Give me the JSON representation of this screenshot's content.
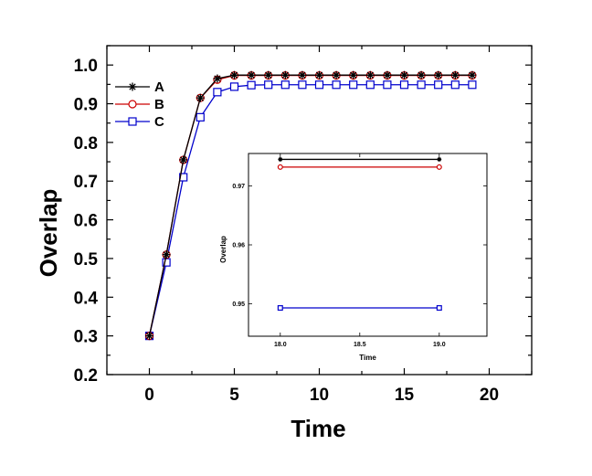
{
  "chart_data": [
    {
      "type": "line",
      "xlabel": "Time",
      "ylabel": "Overlap",
      "xlim": [
        -2.5,
        22.5
      ],
      "ylim": [
        0.2,
        1.05
      ],
      "xticks": [
        0,
        5,
        10,
        15,
        20
      ],
      "yticks": [
        0.2,
        0.3,
        0.4,
        0.5,
        0.6,
        0.7,
        0.8,
        0.9,
        1.0
      ],
      "xtick_labels": [
        "0",
        "5",
        "10",
        "15",
        "20"
      ],
      "ytick_labels": [
        "0.2",
        "0.3",
        "0.4",
        "0.5",
        "0.6",
        "0.7",
        "0.8",
        "0.9",
        "1.0"
      ],
      "legend_position": "top-left",
      "grid": false,
      "x": [
        0,
        1,
        2,
        3,
        4,
        5,
        6,
        7,
        8,
        9,
        10,
        11,
        12,
        13,
        14,
        15,
        16,
        17,
        18,
        19
      ],
      "series": [
        {
          "name": "A",
          "color": "#000000",
          "marker": "star",
          "values": [
            0.3,
            0.51,
            0.755,
            0.915,
            0.965,
            0.974,
            0.974,
            0.974,
            0.974,
            0.974,
            0.974,
            0.974,
            0.974,
            0.974,
            0.974,
            0.974,
            0.974,
            0.974,
            0.974,
            0.974
          ]
        },
        {
          "name": "B",
          "color": "#cc0000",
          "marker": "circle",
          "values": [
            0.3,
            0.51,
            0.755,
            0.915,
            0.962,
            0.973,
            0.973,
            0.973,
            0.973,
            0.973,
            0.973,
            0.973,
            0.973,
            0.973,
            0.973,
            0.973,
            0.973,
            0.973,
            0.973,
            0.973
          ]
        },
        {
          "name": "C",
          "color": "#0000cc",
          "marker": "square",
          "values": [
            0.3,
            0.49,
            0.71,
            0.865,
            0.93,
            0.944,
            0.948,
            0.949,
            0.949,
            0.949,
            0.949,
            0.949,
            0.949,
            0.949,
            0.949,
            0.949,
            0.949,
            0.949,
            0.949,
            0.949
          ]
        }
      ]
    },
    {
      "type": "line",
      "inset": true,
      "xlabel": "Time",
      "ylabel": "Overlap",
      "xlim": [
        17.8,
        19.3
      ],
      "ylim": [
        0.9445,
        0.9755
      ],
      "xticks": [
        18.0,
        18.5,
        19.0
      ],
      "yticks": [
        0.95,
        0.96,
        0.97
      ],
      "xtick_labels": [
        "18.0",
        "18.5",
        "19.0"
      ],
      "ytick_labels": [
        "0.95",
        "0.96",
        "0.97"
      ],
      "x": [
        18,
        19
      ],
      "series": [
        {
          "name": "A",
          "color": "#000000",
          "marker": "star",
          "values": [
            0.9745,
            0.9745
          ]
        },
        {
          "name": "B",
          "color": "#cc0000",
          "marker": "circle",
          "values": [
            0.9732,
            0.9732
          ]
        },
        {
          "name": "C",
          "color": "#0000cc",
          "marker": "square",
          "values": [
            0.9493,
            0.9493
          ]
        }
      ]
    }
  ]
}
